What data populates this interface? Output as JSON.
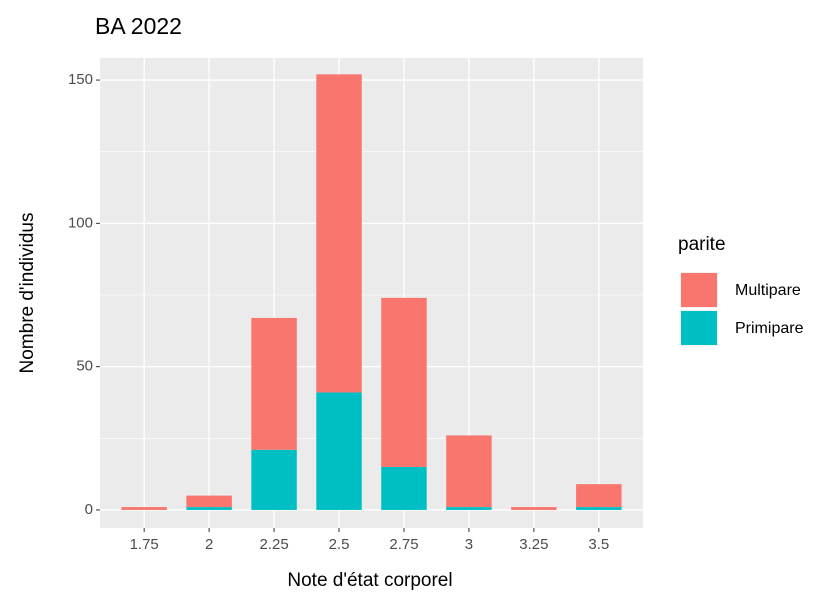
{
  "chart_data": {
    "type": "bar",
    "stacked": true,
    "title": "BA 2022",
    "x_label": "Note d'état corporel",
    "y_label": "Nombre d'individus",
    "categories": [
      "1.75",
      "2",
      "2.25",
      "2.5",
      "2.75",
      "3",
      "3.25",
      "3.5"
    ],
    "legend_title": "parite",
    "series": [
      {
        "name": "Multipare",
        "color": "#f8766d",
        "values": [
          1,
          4,
          46,
          111,
          59,
          25,
          1,
          8
        ]
      },
      {
        "name": "Primipare",
        "color": "#00bfc4",
        "values": [
          0,
          1,
          21,
          41,
          15,
          1,
          0,
          1
        ]
      }
    ],
    "ylim": [
      -6.3,
      157.7
    ],
    "yticks": [
      0,
      50,
      100,
      150
    ],
    "grid": true,
    "legend": "right"
  }
}
